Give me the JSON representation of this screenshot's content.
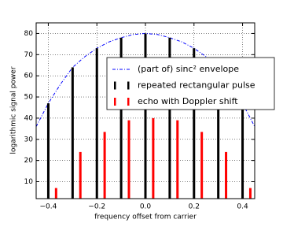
{
  "chart_data": {
    "type": "stem",
    "xlabel": "frequency offset from carrier",
    "ylabel": "logarithmic signal power",
    "xlim": [
      -0.45,
      0.45
    ],
    "ylim": [
      2,
      85
    ],
    "xticks": [
      {
        "value": -0.4,
        "label": "−0.4"
      },
      {
        "value": -0.2,
        "label": "−0.2"
      },
      {
        "value": 0,
        "label": "0.0"
      },
      0.2,
      0.4
    ],
    "yticks": [
      10,
      20,
      30,
      40,
      50,
      60,
      70,
      80
    ],
    "grid": true,
    "series": [
      {
        "name": "(part of) sinc² envelope",
        "type": "line",
        "color": "#0000ff",
        "x": [
          -0.45,
          -0.4,
          -0.35,
          -0.3,
          -0.25,
          -0.2,
          -0.15,
          -0.1,
          -0.05,
          0,
          0.05,
          0.1,
          0.15,
          0.2,
          0.25,
          0.3,
          0.35,
          0.4,
          0.45
        ],
        "values": [
          36,
          47,
          56,
          64,
          69,
          73,
          76,
          78,
          79.5,
          80,
          79.5,
          78,
          76,
          73,
          69,
          64,
          56,
          47,
          36
        ]
      },
      {
        "name": "repeated rectangular pulse",
        "type": "stem",
        "color": "#000000",
        "x": [
          -0.4,
          -0.3,
          -0.2,
          -0.1,
          0,
          0.1,
          0.2,
          0.3,
          0.4
        ],
        "values": [
          47,
          64,
          73,
          78,
          80,
          78,
          73,
          64,
          47
        ]
      },
      {
        "name": "echo with Doppler shift",
        "type": "stem",
        "color": "#ff0000",
        "x": [
          -0.368,
          -0.268,
          -0.168,
          -0.068,
          0.032,
          0.132,
          0.232,
          0.332,
          0.432
        ],
        "values": [
          7,
          24,
          33.5,
          39,
          40,
          39,
          33.5,
          24,
          7
        ]
      }
    ]
  }
}
